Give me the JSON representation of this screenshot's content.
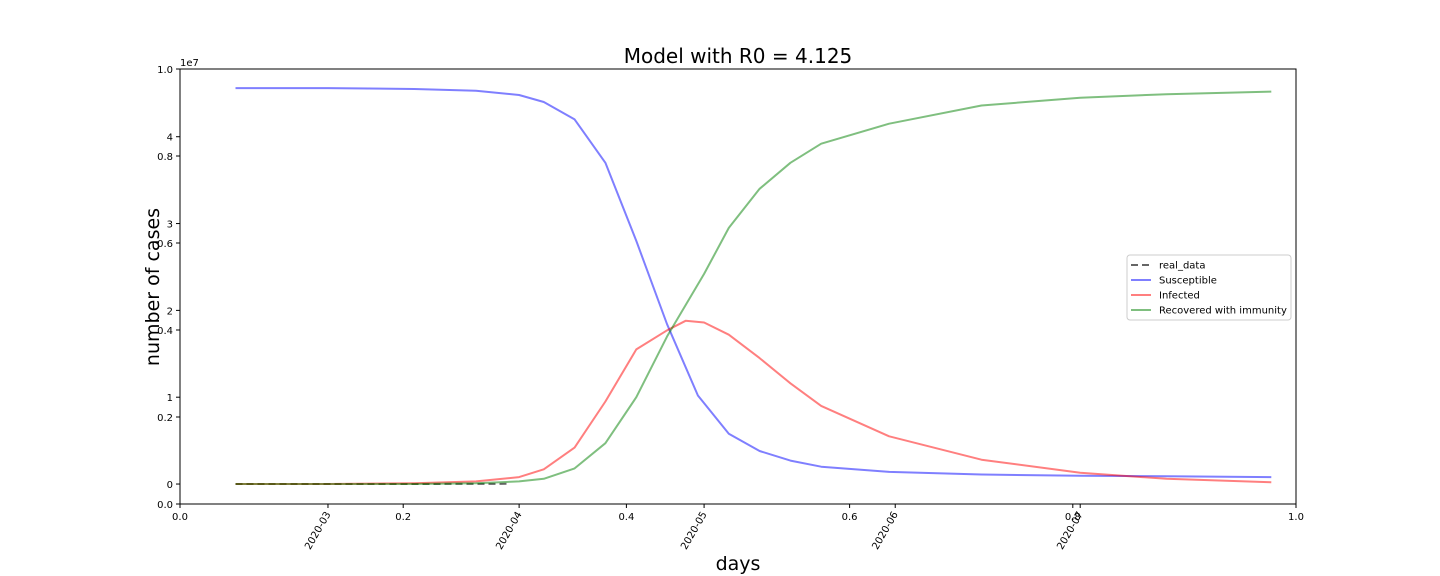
{
  "chart_data": {
    "type": "line",
    "title": "Model with R0 = 4.125",
    "xlabel": "days",
    "ylabel": "number of cases",
    "offset_text": "1e7",
    "grid": false,
    "legend_position": "right",
    "legend": [
      "real_data",
      "Susceptible",
      "Infected",
      "Recovered with immunity"
    ],
    "ghost_axes": {
      "x_ticks": [
        "0.0",
        "0.2",
        "0.4",
        "0.6",
        "0.8",
        "1.0"
      ],
      "y_ticks": [
        "0.0",
        "0.2",
        "0.4",
        "0.6",
        "0.8",
        "1.0"
      ]
    },
    "date_axis": {
      "x_tick_labels": [
        "2020-03",
        "2020-04",
        "2020-05",
        "2020-06",
        "2020-07"
      ],
      "x_tick_dates": [
        "2020-03-01",
        "2020-04-01",
        "2020-05-01",
        "2020-06-01",
        "2020-07-01"
      ],
      "xlim": [
        "2020-02-06",
        "2020-08-05"
      ],
      "y_ticks": [
        0,
        1,
        2,
        3,
        4
      ],
      "y_tick_labels": [
        "0",
        "1",
        "2",
        "3",
        "4"
      ],
      "y_scale": 10000000,
      "ylim": [
        -0.23,
        4.78
      ]
    },
    "series": [
      {
        "name": "real_data",
        "color": "#000000",
        "dash": "dashed",
        "x": [
          "2020-02-15",
          "2020-03-01",
          "2020-03-15",
          "2020-03-30"
        ],
        "y": [
          0.0,
          0.0,
          0.0,
          0.003
        ]
      },
      {
        "name": "Susceptible",
        "color": "#0000ff",
        "x": [
          "2020-02-15",
          "2020-03-01",
          "2020-03-15",
          "2020-03-25",
          "2020-04-01",
          "2020-04-05",
          "2020-04-10",
          "2020-04-15",
          "2020-04-20",
          "2020-04-25",
          "2020-04-30",
          "2020-05-05",
          "2020-05-10",
          "2020-05-15",
          "2020-05-20",
          "2020-05-31",
          "2020-06-15",
          "2020-07-01",
          "2020-07-15",
          "2020-08-01"
        ],
        "y": [
          4.56,
          4.56,
          4.55,
          4.53,
          4.48,
          4.4,
          4.2,
          3.7,
          2.8,
          1.84,
          1.02,
          0.58,
          0.38,
          0.27,
          0.2,
          0.14,
          0.11,
          0.095,
          0.09,
          0.08
        ]
      },
      {
        "name": "Infected",
        "color": "#ff0000",
        "x": [
          "2020-02-15",
          "2020-03-01",
          "2020-03-15",
          "2020-03-25",
          "2020-04-01",
          "2020-04-05",
          "2020-04-10",
          "2020-04-15",
          "2020-04-20",
          "2020-04-25",
          "2020-04-28",
          "2020-05-01",
          "2020-05-05",
          "2020-05-10",
          "2020-05-15",
          "2020-05-20",
          "2020-05-31",
          "2020-06-15",
          "2020-07-01",
          "2020-07-15",
          "2020-08-01"
        ],
        "y": [
          0.0,
          0.0,
          0.01,
          0.03,
          0.08,
          0.17,
          0.42,
          0.95,
          1.55,
          1.77,
          1.88,
          1.86,
          1.72,
          1.45,
          1.16,
          0.9,
          0.55,
          0.28,
          0.13,
          0.06,
          0.02
        ]
      },
      {
        "name": "Recovered with immunity",
        "color": "#008000",
        "x": [
          "2020-02-15",
          "2020-03-01",
          "2020-03-15",
          "2020-03-25",
          "2020-04-01",
          "2020-04-05",
          "2020-04-10",
          "2020-04-15",
          "2020-04-20",
          "2020-04-25",
          "2020-05-01",
          "2020-05-05",
          "2020-05-10",
          "2020-05-15",
          "2020-05-20",
          "2020-05-31",
          "2020-06-15",
          "2020-07-01",
          "2020-07-15",
          "2020-08-01"
        ],
        "y": [
          0.0,
          0.0,
          0.0,
          0.01,
          0.03,
          0.06,
          0.18,
          0.47,
          1.0,
          1.7,
          2.42,
          2.95,
          3.4,
          3.7,
          3.92,
          4.15,
          4.36,
          4.45,
          4.49,
          4.52
        ]
      }
    ]
  }
}
